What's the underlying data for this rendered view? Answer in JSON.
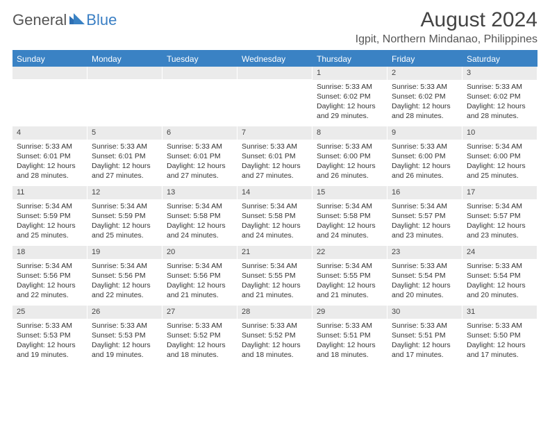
{
  "brand": {
    "general": "General",
    "blue": "Blue"
  },
  "title": "August 2024",
  "location": "Igpit, Northern Mindanao, Philippines",
  "colors": {
    "header_bar": "#3a82c4",
    "daynum_bg": "#ebebeb",
    "text": "#333333",
    "logo_blue": "#3a7fc4",
    "logo_gray": "#555555"
  },
  "dow": [
    "Sunday",
    "Monday",
    "Tuesday",
    "Wednesday",
    "Thursday",
    "Friday",
    "Saturday"
  ],
  "weeks": [
    [
      {
        "n": "",
        "sr": "",
        "ss": "",
        "dl": ""
      },
      {
        "n": "",
        "sr": "",
        "ss": "",
        "dl": ""
      },
      {
        "n": "",
        "sr": "",
        "ss": "",
        "dl": ""
      },
      {
        "n": "",
        "sr": "",
        "ss": "",
        "dl": ""
      },
      {
        "n": "1",
        "sr": "Sunrise: 5:33 AM",
        "ss": "Sunset: 6:02 PM",
        "dl": "Daylight: 12 hours and 29 minutes."
      },
      {
        "n": "2",
        "sr": "Sunrise: 5:33 AM",
        "ss": "Sunset: 6:02 PM",
        "dl": "Daylight: 12 hours and 28 minutes."
      },
      {
        "n": "3",
        "sr": "Sunrise: 5:33 AM",
        "ss": "Sunset: 6:02 PM",
        "dl": "Daylight: 12 hours and 28 minutes."
      }
    ],
    [
      {
        "n": "4",
        "sr": "Sunrise: 5:33 AM",
        "ss": "Sunset: 6:01 PM",
        "dl": "Daylight: 12 hours and 28 minutes."
      },
      {
        "n": "5",
        "sr": "Sunrise: 5:33 AM",
        "ss": "Sunset: 6:01 PM",
        "dl": "Daylight: 12 hours and 27 minutes."
      },
      {
        "n": "6",
        "sr": "Sunrise: 5:33 AM",
        "ss": "Sunset: 6:01 PM",
        "dl": "Daylight: 12 hours and 27 minutes."
      },
      {
        "n": "7",
        "sr": "Sunrise: 5:33 AM",
        "ss": "Sunset: 6:01 PM",
        "dl": "Daylight: 12 hours and 27 minutes."
      },
      {
        "n": "8",
        "sr": "Sunrise: 5:33 AM",
        "ss": "Sunset: 6:00 PM",
        "dl": "Daylight: 12 hours and 26 minutes."
      },
      {
        "n": "9",
        "sr": "Sunrise: 5:33 AM",
        "ss": "Sunset: 6:00 PM",
        "dl": "Daylight: 12 hours and 26 minutes."
      },
      {
        "n": "10",
        "sr": "Sunrise: 5:34 AM",
        "ss": "Sunset: 6:00 PM",
        "dl": "Daylight: 12 hours and 25 minutes."
      }
    ],
    [
      {
        "n": "11",
        "sr": "Sunrise: 5:34 AM",
        "ss": "Sunset: 5:59 PM",
        "dl": "Daylight: 12 hours and 25 minutes."
      },
      {
        "n": "12",
        "sr": "Sunrise: 5:34 AM",
        "ss": "Sunset: 5:59 PM",
        "dl": "Daylight: 12 hours and 25 minutes."
      },
      {
        "n": "13",
        "sr": "Sunrise: 5:34 AM",
        "ss": "Sunset: 5:58 PM",
        "dl": "Daylight: 12 hours and 24 minutes."
      },
      {
        "n": "14",
        "sr": "Sunrise: 5:34 AM",
        "ss": "Sunset: 5:58 PM",
        "dl": "Daylight: 12 hours and 24 minutes."
      },
      {
        "n": "15",
        "sr": "Sunrise: 5:34 AM",
        "ss": "Sunset: 5:58 PM",
        "dl": "Daylight: 12 hours and 24 minutes."
      },
      {
        "n": "16",
        "sr": "Sunrise: 5:34 AM",
        "ss": "Sunset: 5:57 PM",
        "dl": "Daylight: 12 hours and 23 minutes."
      },
      {
        "n": "17",
        "sr": "Sunrise: 5:34 AM",
        "ss": "Sunset: 5:57 PM",
        "dl": "Daylight: 12 hours and 23 minutes."
      }
    ],
    [
      {
        "n": "18",
        "sr": "Sunrise: 5:34 AM",
        "ss": "Sunset: 5:56 PM",
        "dl": "Daylight: 12 hours and 22 minutes."
      },
      {
        "n": "19",
        "sr": "Sunrise: 5:34 AM",
        "ss": "Sunset: 5:56 PM",
        "dl": "Daylight: 12 hours and 22 minutes."
      },
      {
        "n": "20",
        "sr": "Sunrise: 5:34 AM",
        "ss": "Sunset: 5:56 PM",
        "dl": "Daylight: 12 hours and 21 minutes."
      },
      {
        "n": "21",
        "sr": "Sunrise: 5:34 AM",
        "ss": "Sunset: 5:55 PM",
        "dl": "Daylight: 12 hours and 21 minutes."
      },
      {
        "n": "22",
        "sr": "Sunrise: 5:34 AM",
        "ss": "Sunset: 5:55 PM",
        "dl": "Daylight: 12 hours and 21 minutes."
      },
      {
        "n": "23",
        "sr": "Sunrise: 5:33 AM",
        "ss": "Sunset: 5:54 PM",
        "dl": "Daylight: 12 hours and 20 minutes."
      },
      {
        "n": "24",
        "sr": "Sunrise: 5:33 AM",
        "ss": "Sunset: 5:54 PM",
        "dl": "Daylight: 12 hours and 20 minutes."
      }
    ],
    [
      {
        "n": "25",
        "sr": "Sunrise: 5:33 AM",
        "ss": "Sunset: 5:53 PM",
        "dl": "Daylight: 12 hours and 19 minutes."
      },
      {
        "n": "26",
        "sr": "Sunrise: 5:33 AM",
        "ss": "Sunset: 5:53 PM",
        "dl": "Daylight: 12 hours and 19 minutes."
      },
      {
        "n": "27",
        "sr": "Sunrise: 5:33 AM",
        "ss": "Sunset: 5:52 PM",
        "dl": "Daylight: 12 hours and 18 minutes."
      },
      {
        "n": "28",
        "sr": "Sunrise: 5:33 AM",
        "ss": "Sunset: 5:52 PM",
        "dl": "Daylight: 12 hours and 18 minutes."
      },
      {
        "n": "29",
        "sr": "Sunrise: 5:33 AM",
        "ss": "Sunset: 5:51 PM",
        "dl": "Daylight: 12 hours and 18 minutes."
      },
      {
        "n": "30",
        "sr": "Sunrise: 5:33 AM",
        "ss": "Sunset: 5:51 PM",
        "dl": "Daylight: 12 hours and 17 minutes."
      },
      {
        "n": "31",
        "sr": "Sunrise: 5:33 AM",
        "ss": "Sunset: 5:50 PM",
        "dl": "Daylight: 12 hours and 17 minutes."
      }
    ]
  ]
}
